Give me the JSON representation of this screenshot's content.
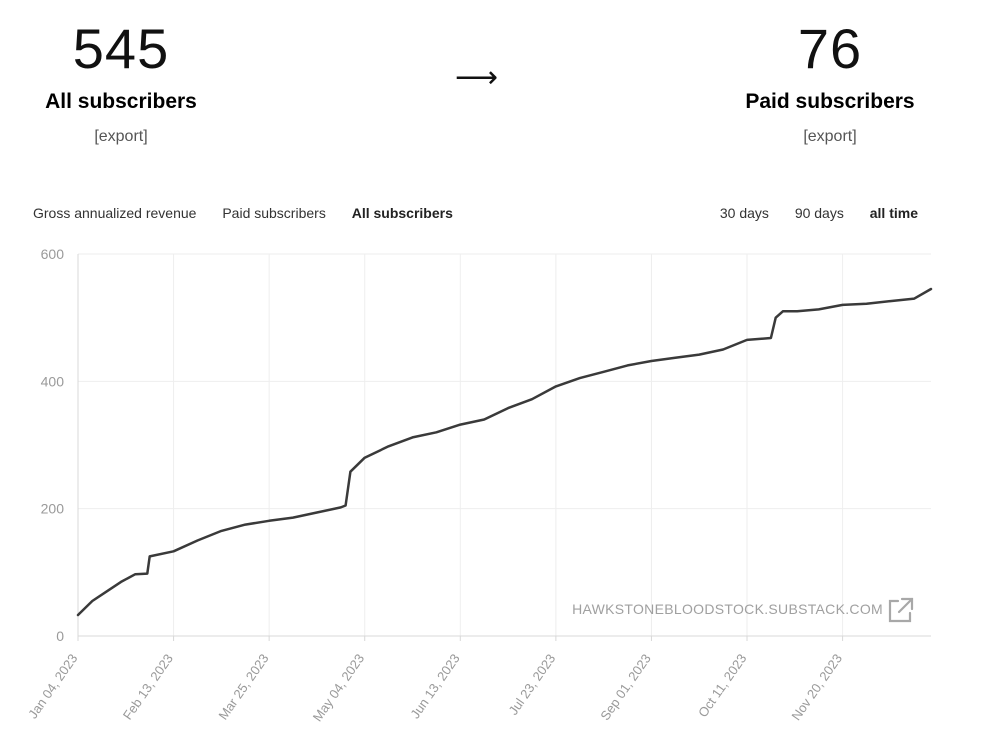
{
  "summary": {
    "all": {
      "count": "545",
      "label": "All subscribers",
      "export": "[export]"
    },
    "arrow": "⟶",
    "paid": {
      "count": "76",
      "label": "Paid subscribers",
      "export": "[export]"
    }
  },
  "tabs": [
    {
      "label": "Gross annualized revenue",
      "active": false
    },
    {
      "label": "Paid subscribers",
      "active": false
    },
    {
      "label": "All subscribers",
      "active": true
    }
  ],
  "ranges": [
    {
      "label": "30 days",
      "active": false
    },
    {
      "label": "90 days",
      "active": false
    },
    {
      "label": "all time",
      "active": true
    }
  ],
  "watermark": "HAWKSTONEBLOODSTOCK.SUBSTACK.COM",
  "colors": {
    "line": "#3a3a3a",
    "grid": "#eeeeee",
    "axis": "#d8d8d8"
  },
  "chart_data": {
    "type": "line",
    "xlabel": "",
    "ylabel": "",
    "ylim": [
      0,
      600
    ],
    "yticks": [
      0,
      200,
      400,
      600
    ],
    "xlim": [
      "2023-01-04",
      "2023-12-27"
    ],
    "xticks": [
      "2023-01-04",
      "2023-02-13",
      "2023-03-25",
      "2023-05-04",
      "2023-06-13",
      "2023-07-23",
      "2023-09-01",
      "2023-10-11",
      "2023-11-20"
    ],
    "xtick_labels": [
      "Jan 04, 2023",
      "Feb 13, 2023",
      "Mar 25, 2023",
      "May 04, 2023",
      "Jun 13, 2023",
      "Jul 23, 2023",
      "Sep 01, 2023",
      "Oct 11, 2023",
      "Nov 20, 2023"
    ],
    "grid": true,
    "series": [
      {
        "x": [
          "2023-01-04",
          "2023-01-10",
          "2023-01-16",
          "2023-01-22",
          "2023-01-28",
          "2023-02-02",
          "2023-02-03",
          "2023-02-13",
          "2023-02-23",
          "2023-03-05",
          "2023-03-15",
          "2023-03-25",
          "2023-04-04",
          "2023-04-14",
          "2023-04-24",
          "2023-04-26",
          "2023-04-28",
          "2023-05-04",
          "2023-05-14",
          "2023-05-24",
          "2023-06-03",
          "2023-06-13",
          "2023-06-23",
          "2023-07-03",
          "2023-07-13",
          "2023-07-23",
          "2023-08-02",
          "2023-08-12",
          "2023-08-22",
          "2023-09-01",
          "2023-09-11",
          "2023-09-21",
          "2023-10-01",
          "2023-10-11",
          "2023-10-21",
          "2023-10-23",
          "2023-10-26",
          "2023-11-01",
          "2023-11-10",
          "2023-11-20",
          "2023-11-30",
          "2023-12-10",
          "2023-12-20",
          "2023-12-27"
        ],
        "values": [
          33,
          55,
          70,
          85,
          97,
          98,
          125,
          133,
          150,
          165,
          175,
          181,
          186,
          194,
          202,
          205,
          258,
          280,
          298,
          312,
          320,
          332,
          340,
          358,
          372,
          392,
          405,
          415,
          425,
          432,
          437,
          442,
          450,
          465,
          468,
          500,
          510,
          510,
          513,
          520,
          522,
          526,
          530,
          545
        ]
      }
    ]
  }
}
